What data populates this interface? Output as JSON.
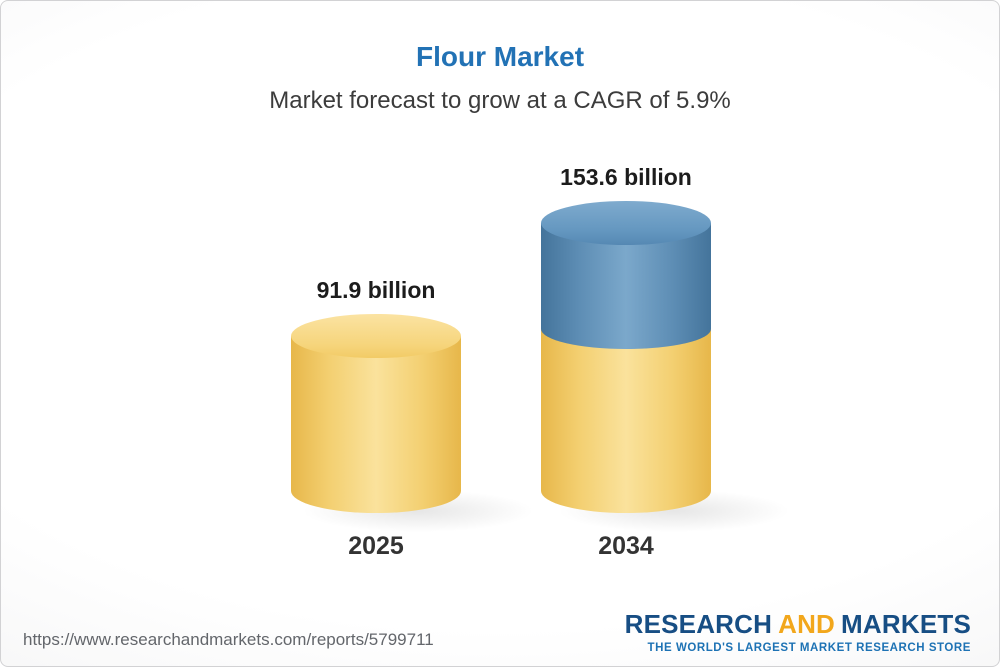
{
  "page": {
    "source_url": "https://www.researchandmarkets.com/reports/5799711",
    "logo": {
      "research": "RESEARCH",
      "and": "AND",
      "markets": "MARKETS",
      "tagline": "THE WORLD'S LARGEST MARKET RESEARCH STORE"
    }
  },
  "chart_data": {
    "type": "bar",
    "subtype": "3d-cylinder",
    "title": "Flour Market",
    "subtitle": "Market forecast to grow at a CAGR of 5.9%",
    "cagr_percent": 5.9,
    "categories": [
      "2025",
      "2034"
    ],
    "values": [
      91.9,
      153.6
    ],
    "unit": "billion",
    "value_labels": [
      "91.9 billion",
      "153.6 billion"
    ],
    "xlabel": "",
    "ylabel": "",
    "ylim": [
      0,
      160
    ],
    "grid": false,
    "legend": "none",
    "colors": {
      "bar_2025": "#f5d06e",
      "bar_2034_base": "#f5d06e",
      "bar_2034_top": "#5b8db6",
      "title_text": "#2272b5",
      "logo_blue": "#174e84",
      "logo_gold": "#f2a71c"
    }
  }
}
